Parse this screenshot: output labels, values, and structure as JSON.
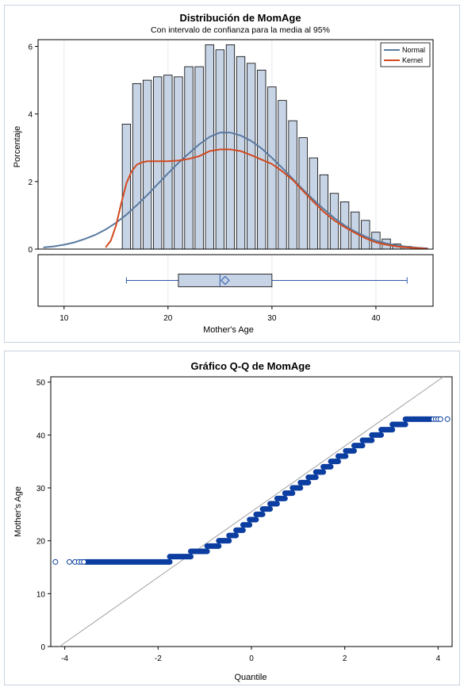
{
  "chart_data": [
    {
      "type": "bar",
      "title": "Distribución de MomAge",
      "subtitle": "Con intervalo de confianza para la media al 95%",
      "xlabel": "Mother's Age",
      "ylabel": "Porcentaje",
      "xlim": [
        7.5,
        45.5
      ],
      "ylim": [
        0,
        6.2
      ],
      "xticks": [
        10,
        20,
        30,
        40
      ],
      "yticks": [
        0,
        2,
        4,
        6
      ],
      "grid": true,
      "legend_position": "top-right",
      "bar_width": 0.8,
      "bars": {
        "x": [
          16,
          17,
          18,
          19,
          20,
          21,
          22,
          23,
          24,
          25,
          26,
          27,
          28,
          29,
          30,
          31,
          32,
          33,
          34,
          35,
          36,
          37,
          38,
          39,
          40,
          41,
          42,
          43
        ],
        "values": [
          3.7,
          4.9,
          5.0,
          5.1,
          5.15,
          5.1,
          5.4,
          5.4,
          6.05,
          5.9,
          6.05,
          5.7,
          5.5,
          5.3,
          4.8,
          4.4,
          3.8,
          3.3,
          2.7,
          2.2,
          1.65,
          1.4,
          1.1,
          0.85,
          0.5,
          0.3,
          0.15,
          0.08
        ]
      },
      "series": [
        {
          "name": "Normal",
          "color": "#5a7aa0",
          "x": [
            8,
            9,
            10,
            11,
            12,
            13,
            14,
            15,
            16,
            17,
            18,
            19,
            20,
            21,
            22,
            23,
            24,
            25,
            26,
            27,
            28,
            29,
            30,
            31,
            32,
            33,
            34,
            35,
            36,
            37,
            38,
            39,
            40,
            41,
            42,
            43,
            44,
            45
          ],
          "values": [
            0.05,
            0.08,
            0.13,
            0.2,
            0.3,
            0.42,
            0.58,
            0.78,
            1.02,
            1.3,
            1.6,
            1.92,
            2.24,
            2.55,
            2.83,
            3.1,
            3.32,
            3.45,
            3.45,
            3.36,
            3.2,
            2.98,
            2.7,
            2.4,
            2.08,
            1.76,
            1.46,
            1.18,
            0.92,
            0.7,
            0.52,
            0.37,
            0.25,
            0.17,
            0.11,
            0.07,
            0.04,
            0.02
          ]
        },
        {
          "name": "Kernel",
          "color": "#d2491e",
          "x": [
            14,
            14.5,
            15,
            15.5,
            16,
            16.5,
            17,
            17.5,
            18,
            19,
            20,
            21,
            22,
            23,
            24,
            25,
            26,
            27,
            28,
            29,
            30,
            31,
            32,
            33,
            34,
            35,
            36,
            37,
            38,
            39,
            40,
            41,
            42,
            43,
            44,
            45
          ],
          "values": [
            0.05,
            0.25,
            0.7,
            1.35,
            1.95,
            2.3,
            2.5,
            2.57,
            2.6,
            2.6,
            2.6,
            2.62,
            2.67,
            2.75,
            2.9,
            2.95,
            2.95,
            2.9,
            2.78,
            2.65,
            2.52,
            2.3,
            2.05,
            1.72,
            1.4,
            1.1,
            0.85,
            0.65,
            0.48,
            0.32,
            0.2,
            0.13,
            0.08,
            0.05,
            0.03,
            0.01
          ]
        }
      ],
      "boxplot": {
        "min": 16,
        "q1": 21,
        "median": 25,
        "mean": 25.5,
        "q3": 30,
        "max": 43
      },
      "xtick_labels": [
        "10",
        "20",
        "30",
        "40"
      ],
      "ytick_labels": [
        "0",
        "2",
        "4",
        "6"
      ]
    },
    {
      "type": "scatter",
      "title": "Gráfico Q-Q de MomAge",
      "xlabel": "Quantile",
      "ylabel": "Mother's Age",
      "xlim": [
        -4.3,
        4.3
      ],
      "ylim": [
        0,
        51
      ],
      "xticks": [
        -4,
        -2,
        0,
        2,
        4
      ],
      "yticks": [
        0,
        10,
        20,
        30,
        40,
        50
      ],
      "xtick_labels": [
        "-4",
        "-2",
        "0",
        "2",
        "4"
      ],
      "ytick_labels": [
        "0",
        "10",
        "20",
        "30",
        "40",
        "50"
      ],
      "grid": false,
      "marker_color": "#0b3ea0",
      "reference_line": {
        "intercept": 25.5,
        "slope": 6.2,
        "color": "#a0a0a0"
      },
      "steps": [
        {
          "y": 16,
          "x0": -3.55,
          "x1": -1.75
        },
        {
          "y": 17,
          "x0": -1.75,
          "x1": -1.3
        },
        {
          "y": 18,
          "x0": -1.3,
          "x1": -0.95
        },
        {
          "y": 19,
          "x0": -0.95,
          "x1": -0.7
        },
        {
          "y": 20,
          "x0": -0.7,
          "x1": -0.48
        },
        {
          "y": 21,
          "x0": -0.48,
          "x1": -0.33
        },
        {
          "y": 22,
          "x0": -0.33,
          "x1": -0.18
        },
        {
          "y": 23,
          "x0": -0.18,
          "x1": -0.04
        },
        {
          "y": 24,
          "x0": -0.04,
          "x1": 0.1
        },
        {
          "y": 25,
          "x0": 0.1,
          "x1": 0.24
        },
        {
          "y": 26,
          "x0": 0.24,
          "x1": 0.4
        },
        {
          "y": 27,
          "x0": 0.4,
          "x1": 0.55
        },
        {
          "y": 28,
          "x0": 0.55,
          "x1": 0.72
        },
        {
          "y": 29,
          "x0": 0.72,
          "x1": 0.88
        },
        {
          "y": 30,
          "x0": 0.88,
          "x1": 1.05
        },
        {
          "y": 31,
          "x0": 1.05,
          "x1": 1.22
        },
        {
          "y": 32,
          "x0": 1.22,
          "x1": 1.38
        },
        {
          "y": 33,
          "x0": 1.38,
          "x1": 1.54
        },
        {
          "y": 34,
          "x0": 1.54,
          "x1": 1.7
        },
        {
          "y": 35,
          "x0": 1.7,
          "x1": 1.86
        },
        {
          "y": 36,
          "x0": 1.86,
          "x1": 2.02
        },
        {
          "y": 37,
          "x0": 2.02,
          "x1": 2.2
        },
        {
          "y": 38,
          "x0": 2.2,
          "x1": 2.38
        },
        {
          "y": 39,
          "x0": 2.38,
          "x1": 2.58
        },
        {
          "y": 40,
          "x0": 2.58,
          "x1": 2.78
        },
        {
          "y": 41,
          "x0": 2.78,
          "x1": 3.02
        },
        {
          "y": 42,
          "x0": 3.02,
          "x1": 3.3
        },
        {
          "y": 43,
          "x0": 3.3,
          "x1": 3.85
        }
      ],
      "outliers": [
        {
          "x": -4.2,
          "y": 16
        },
        {
          "x": -3.9,
          "y": 16
        },
        {
          "x": -3.78,
          "y": 16
        },
        {
          "x": -3.7,
          "y": 16
        },
        {
          "x": -3.64,
          "y": 16
        },
        {
          "x": -3.59,
          "y": 16
        },
        {
          "x": 3.9,
          "y": 43
        },
        {
          "x": 3.95,
          "y": 43
        },
        {
          "x": 4.0,
          "y": 43
        },
        {
          "x": 4.05,
          "y": 43
        },
        {
          "x": 4.2,
          "y": 43
        }
      ]
    }
  ]
}
